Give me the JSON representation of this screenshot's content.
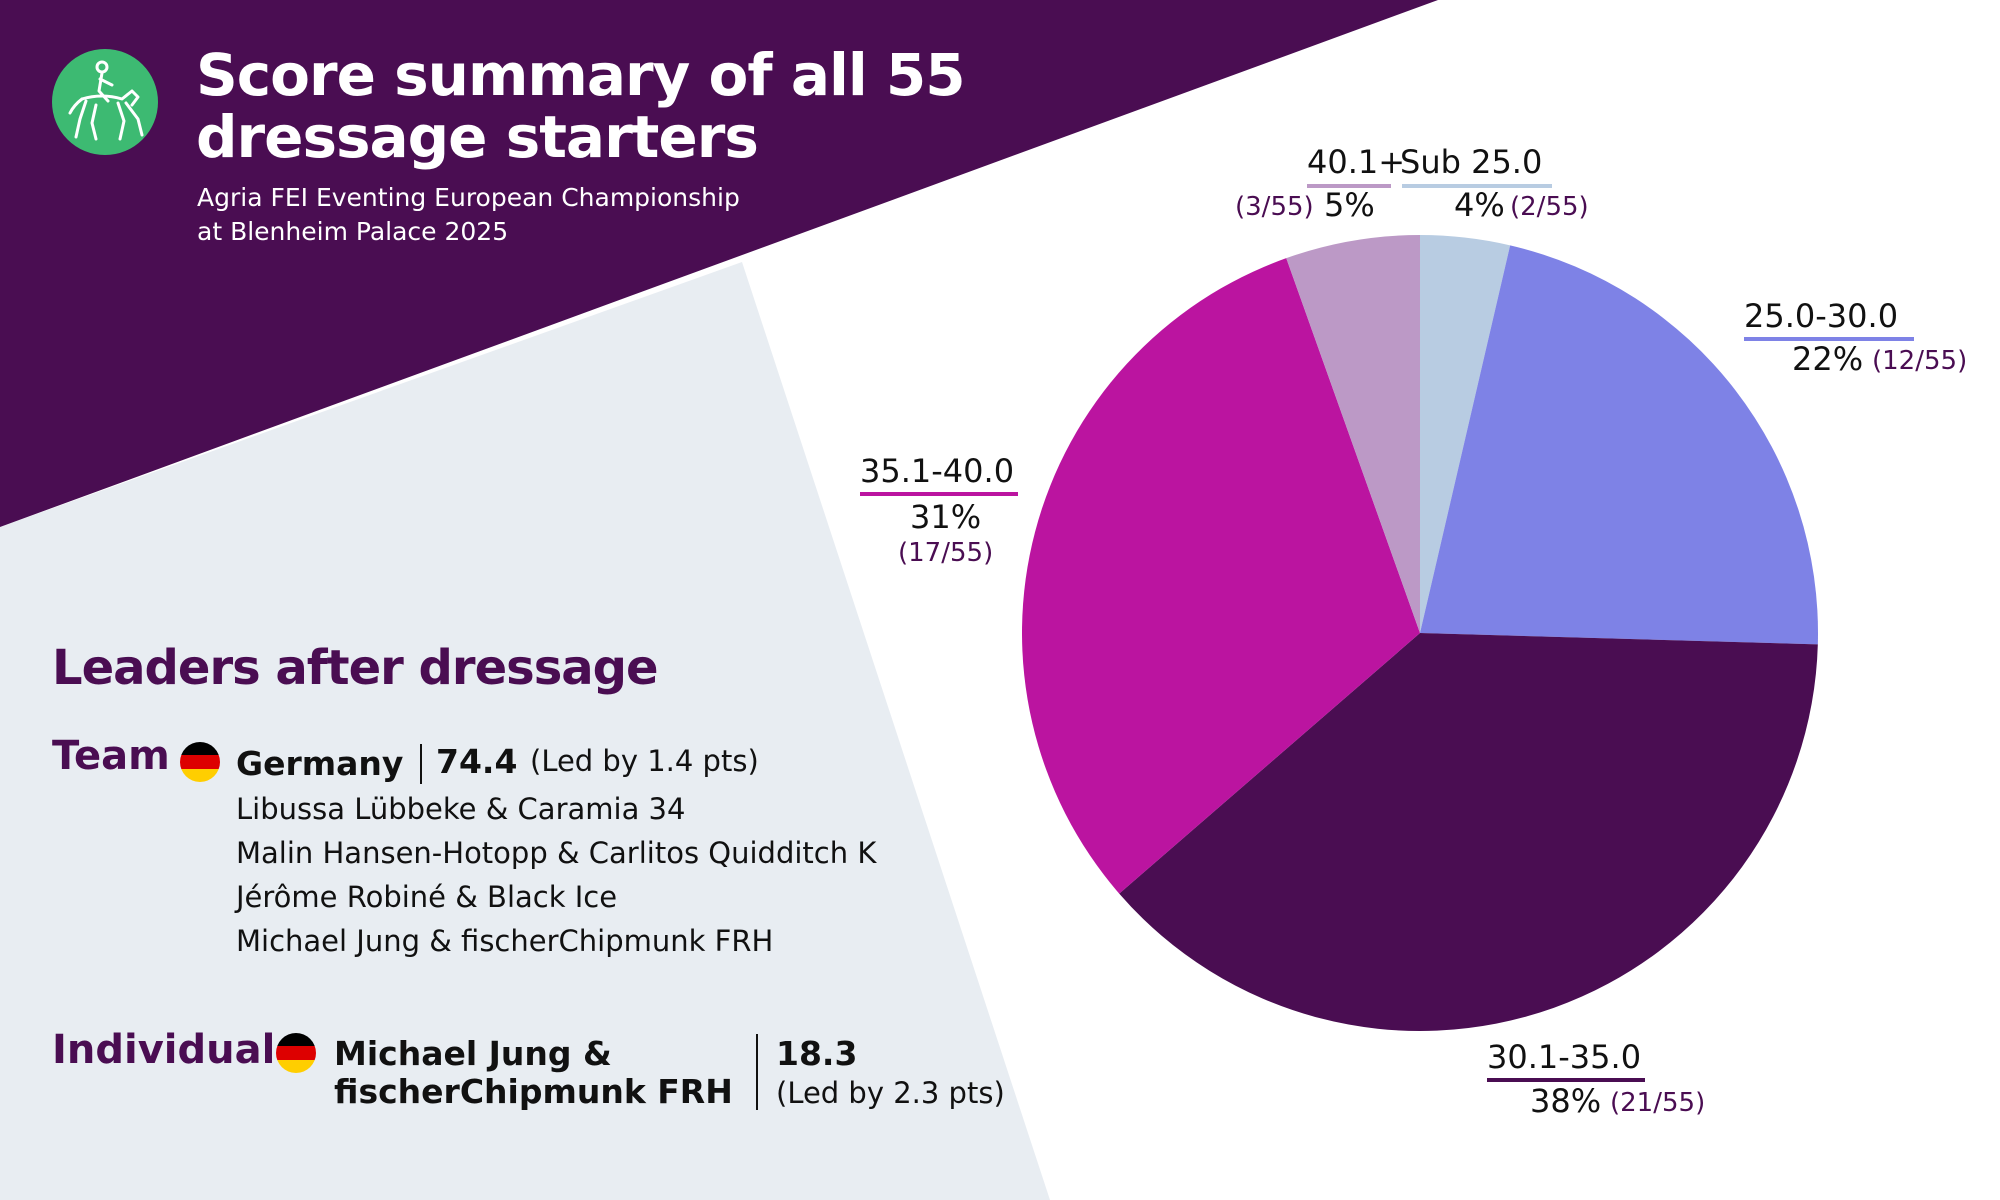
{
  "header": {
    "title_line1": "Score summary of all 55",
    "title_line2": "dressage starters",
    "subtitle_line1": "Agria FEI Eventing European Championship",
    "subtitle_line2": "at Blenheim Palace 2025",
    "logo_icon": "dressage-rider-icon"
  },
  "leaders": {
    "heading": "Leaders after dressage",
    "team": {
      "label": "Team",
      "flag": "germany-flag-icon",
      "country": "Germany",
      "score": "74.4",
      "margin": "(Led by 1.4 pts)",
      "riders": [
        "Libussa Lübbeke & Caramia 34",
        "Malin Hansen-Hotopp & Carlitos Quidditch K",
        "Jérôme Robiné & Black Ice",
        "Michael Jung & fischerChipmunk FRH"
      ]
    },
    "individual": {
      "label": "Individual",
      "flag": "germany-flag-icon",
      "name_line1": "Michael Jung &",
      "name_line2": "fischerChipmunk FRH",
      "score": "18.3",
      "margin": "(Led by 2.3 pts)"
    }
  },
  "colors": {
    "brand_purple": "#4a0d52",
    "panel_grey": "#e8edf2",
    "logo_green": "#3dba72",
    "flag_black": "#000000",
    "flag_red": "#dd0000",
    "flag_gold": "#ffce00"
  },
  "chart_data": {
    "type": "pie",
    "start_angle_deg": 0,
    "direction": "clockwise",
    "slices": [
      {
        "label": "Sub 25.0",
        "value": 2,
        "percent_label": "4%",
        "count_label": "(2/55)",
        "color": "#b8cce2"
      },
      {
        "label": "25.0-30.0",
        "value": 12,
        "percent_label": "22%",
        "count_label": "(12/55)",
        "color": "#7e82e6"
      },
      {
        "label": "30.1-35.0",
        "value": 21,
        "percent_label": "38%",
        "count_label": "(21/55)",
        "color": "#4a0d52"
      },
      {
        "label": "35.1-40.0",
        "value": 17,
        "percent_label": "31%",
        "count_label": "(17/55)",
        "color": "#bb14a0"
      },
      {
        "label": "40.1+",
        "value": 3,
        "percent_label": "5%",
        "count_label": "(3/55)",
        "color": "#bc99c6"
      }
    ],
    "total": 55
  }
}
